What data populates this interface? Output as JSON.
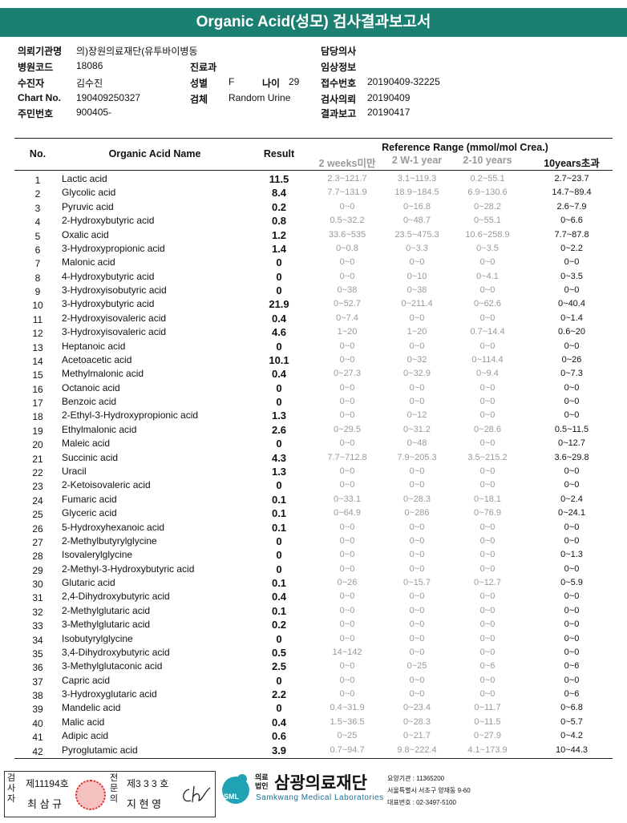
{
  "header": {
    "title": "Organic Acid(성모) 검사결과보고서"
  },
  "info": {
    "institution": {
      "label": "의뢰기관명",
      "value": "의)장원의료재단(유투바이병동"
    },
    "hospital_code": {
      "label": "병원코드",
      "value": "18086"
    },
    "patient": {
      "label": "수진자",
      "value": "김수진"
    },
    "chart_no": {
      "label": "Chart No.",
      "value": "190409250327"
    },
    "resident_no": {
      "label": "주민번호",
      "value": "900405-"
    },
    "department": {
      "label": "진료과"
    },
    "sex": {
      "label": "성별",
      "value": "F"
    },
    "age": {
      "label": "나이",
      "value": "29"
    },
    "specimen": {
      "label": "검체",
      "value": "Random Urine"
    },
    "doctor": {
      "label": "담당의사"
    },
    "clinical_info": {
      "label": "임상정보"
    },
    "receipt_no": {
      "label": "접수번호",
      "value": "20190409-32225"
    },
    "request_date": {
      "label": "검사의뢰",
      "value": "20190409"
    },
    "report_date": {
      "label": "결과보고",
      "value": "20190417"
    }
  },
  "table": {
    "headers": {
      "no": "No.",
      "name": "Organic Acid Name",
      "result": "Result",
      "reference": "Reference Range (mmol/mol Crea.)",
      "ranges": [
        "2 weeks미만",
        "2 W-1 year",
        "2-10 years",
        "10years초과"
      ]
    },
    "rows": [
      {
        "no": 1,
        "name": "Lactic acid",
        "result": 11.5,
        "ranges": [
          "2.3~121.7",
          "3.1~119.3",
          "0.2~55.1",
          "2.7~23.7"
        ]
      },
      {
        "no": 2,
        "name": "Glycolic acid",
        "result": 8.4,
        "ranges": [
          "7.7~131.9",
          "18.9~184.5",
          "6.9~130.6",
          "14.7~89.4"
        ]
      },
      {
        "no": 3,
        "name": "Pyruvic acid",
        "result": 0.2,
        "ranges": [
          "0~0",
          "0~16.8",
          "0~28.2",
          "2.6~7.9"
        ]
      },
      {
        "no": 4,
        "name": "2-Hydroxybutyric acid",
        "result": 0.8,
        "ranges": [
          "0.5~32.2",
          "0~48.7",
          "0~55.1",
          "0~6.6"
        ]
      },
      {
        "no": 5,
        "name": "Oxalic acid",
        "result": 1.2,
        "ranges": [
          "33.6~535",
          "23.5~475.3",
          "10.6~258.9",
          "7.7~87.8"
        ]
      },
      {
        "no": 6,
        "name": "3-Hydroxypropionic acid",
        "result": 1.4,
        "ranges": [
          "0~0.8",
          "0~3.3",
          "0~3.5",
          "0~2.2"
        ]
      },
      {
        "no": 7,
        "name": "Malonic acid",
        "result": 0,
        "ranges": [
          "0~0",
          "0~0",
          "0~0",
          "0~0"
        ]
      },
      {
        "no": 8,
        "name": "4-Hydroxybutyric acid",
        "result": 0,
        "ranges": [
          "0~0",
          "0~10",
          "0~4.1",
          "0~3.5"
        ]
      },
      {
        "no": 9,
        "name": "3-Hydroxyisobutyric acid",
        "result": 0,
        "ranges": [
          "0~38",
          "0~38",
          "0~0",
          "0~0"
        ]
      },
      {
        "no": 10,
        "name": "3-Hydroxybutyric acid",
        "result": 21.9,
        "ranges": [
          "0~52.7",
          "0~211.4",
          "0~62.6",
          "0~40.4"
        ]
      },
      {
        "no": 11,
        "name": "2-Hydroxyisovaleric acid",
        "result": 0.4,
        "ranges": [
          "0~7.4",
          "0~0",
          "0~0",
          "0~1.4"
        ]
      },
      {
        "no": 12,
        "name": "3-Hydroxyisovaleric acid",
        "result": 4.6,
        "ranges": [
          "1~20",
          "1~20",
          "0.7~14.4",
          "0.6~20"
        ]
      },
      {
        "no": 13,
        "name": "Heptanoic acid",
        "result": 0,
        "ranges": [
          "0~0",
          "0~0",
          "0~0",
          "0~0"
        ]
      },
      {
        "no": 14,
        "name": "Acetoacetic acid",
        "result": 10.1,
        "ranges": [
          "0~0",
          "0~32",
          "0~114.4",
          "0~26"
        ]
      },
      {
        "no": 15,
        "name": "Methylmalonic acid",
        "result": 0.4,
        "ranges": [
          "0~27.3",
          "0~32.9",
          "0~9.4",
          "0~7.3"
        ]
      },
      {
        "no": 16,
        "name": "Octanoic acid",
        "result": 0,
        "ranges": [
          "0~0",
          "0~0",
          "0~0",
          "0~0"
        ]
      },
      {
        "no": 17,
        "name": "Benzoic acid",
        "result": 0,
        "ranges": [
          "0~0",
          "0~0",
          "0~0",
          "0~0"
        ]
      },
      {
        "no": 18,
        "name": "2-Ethyl-3-Hydroxypropionic acid",
        "result": 1.3,
        "ranges": [
          "0~0",
          "0~12",
          "0~0",
          "0~0"
        ]
      },
      {
        "no": 19,
        "name": "Ethylmalonic acid",
        "result": 2.6,
        "ranges": [
          "0~29.5",
          "0~31.2",
          "0~28.6",
          "0.5~11.5"
        ]
      },
      {
        "no": 20,
        "name": "Maleic acid",
        "result": 0,
        "ranges": [
          "0~0",
          "0~48",
          "0~0",
          "0~12.7"
        ]
      },
      {
        "no": 21,
        "name": "Succinic acid",
        "result": 4.3,
        "ranges": [
          "7.7~712.8",
          "7.9~205.3",
          "3.5~215.2",
          "3.6~29.8"
        ]
      },
      {
        "no": 22,
        "name": "Uracil",
        "result": 1.3,
        "ranges": [
          "0~0",
          "0~0",
          "0~0",
          "0~0"
        ]
      },
      {
        "no": 23,
        "name": "2-Ketoisovaleric acid",
        "result": 0,
        "ranges": [
          "0~0",
          "0~0",
          "0~0",
          "0~0"
        ]
      },
      {
        "no": 24,
        "name": "Fumaric acid",
        "result": 0.1,
        "ranges": [
          "0~33.1",
          "0~28.3",
          "0~18.1",
          "0~2.4"
        ]
      },
      {
        "no": 25,
        "name": "Glyceric acid",
        "result": 0.1,
        "ranges": [
          "0~64.9",
          "0~286",
          "0~76.9",
          "0~24.1"
        ]
      },
      {
        "no": 26,
        "name": "5-Hydroxyhexanoic acid",
        "result": 0.1,
        "ranges": [
          "0~0",
          "0~0",
          "0~0",
          "0~0"
        ]
      },
      {
        "no": 27,
        "name": "2-Methylbutyrylglycine",
        "result": 0,
        "ranges": [
          "0~0",
          "0~0",
          "0~0",
          "0~0"
        ]
      },
      {
        "no": 28,
        "name": "Isovalerylglycine",
        "result": 0,
        "ranges": [
          "0~0",
          "0~0",
          "0~0",
          "0~1.3"
        ]
      },
      {
        "no": 29,
        "name": "2-Methyl-3-Hydroxybutyric acid",
        "result": 0,
        "ranges": [
          "0~0",
          "0~0",
          "0~0",
          "0~0"
        ]
      },
      {
        "no": 30,
        "name": "Glutaric acid",
        "result": 0.1,
        "ranges": [
          "0~26",
          "0~15.7",
          "0~12.7",
          "0~5.9"
        ]
      },
      {
        "no": 31,
        "name": "2,4-Dihydroxybutyric acid",
        "result": 0.4,
        "ranges": [
          "0~0",
          "0~0",
          "0~0",
          "0~0"
        ]
      },
      {
        "no": 32,
        "name": "2-Methylglutaric acid",
        "result": 0.1,
        "ranges": [
          "0~0",
          "0~0",
          "0~0",
          "0~0"
        ]
      },
      {
        "no": 33,
        "name": "3-Methylglutaric acid",
        "result": 0.2,
        "ranges": [
          "0~0",
          "0~0",
          "0~0",
          "0~0"
        ]
      },
      {
        "no": 34,
        "name": "Isobutyrylglycine",
        "result": 0,
        "ranges": [
          "0~0",
          "0~0",
          "0~0",
          "0~0"
        ]
      },
      {
        "no": 35,
        "name": "3,4-Dihydroxybutyric acid",
        "result": 0.5,
        "ranges": [
          "14~142",
          "0~0",
          "0~0",
          "0~0"
        ]
      },
      {
        "no": 36,
        "name": "3-Methylglutaconic acid",
        "result": 2.5,
        "ranges": [
          "0~0",
          "0~25",
          "0~6",
          "0~6"
        ]
      },
      {
        "no": 37,
        "name": "Capric acid",
        "result": 0,
        "ranges": [
          "0~0",
          "0~0",
          "0~0",
          "0~0"
        ]
      },
      {
        "no": 38,
        "name": "3-Hydroxyglutaric acid",
        "result": 2.2,
        "ranges": [
          "0~0",
          "0~0",
          "0~0",
          "0~6"
        ]
      },
      {
        "no": 39,
        "name": "Mandelic acid",
        "result": 0,
        "ranges": [
          "0.4~31.9",
          "0~23.4",
          "0~11.7",
          "0~6.8"
        ]
      },
      {
        "no": 40,
        "name": "Malic acid",
        "result": 0.4,
        "ranges": [
          "1.5~36.5",
          "0~28.3",
          "0~11.5",
          "0~5.7"
        ]
      },
      {
        "no": 41,
        "name": "Adipic acid",
        "result": 0.6,
        "ranges": [
          "0~25",
          "0~21.7",
          "0~27.9",
          "0~4.2"
        ]
      },
      {
        "no": 42,
        "name": "Pyroglutamic acid",
        "result": 3.9,
        "ranges": [
          "0.7~94.7",
          "9.8~222.4",
          "4.1~173.9",
          "10~44.3"
        ]
      }
    ]
  },
  "footer": {
    "examiner": {
      "label": "검사자",
      "license": "제11194호",
      "name": "최 삼 규"
    },
    "specialist": {
      "label": "전문의",
      "license": "제3 3 3 호",
      "name": "지 현 영"
    },
    "logo": "SML",
    "org_type": "의료법인",
    "org_name": "삼광의료재단",
    "org_english": "Samkwang Medical Laboratories",
    "code": "요양기관 : 11365200",
    "address": "서울특별시 서초구 양재동 9-60",
    "phone": "대표번호 : 02-3497-5100"
  }
}
